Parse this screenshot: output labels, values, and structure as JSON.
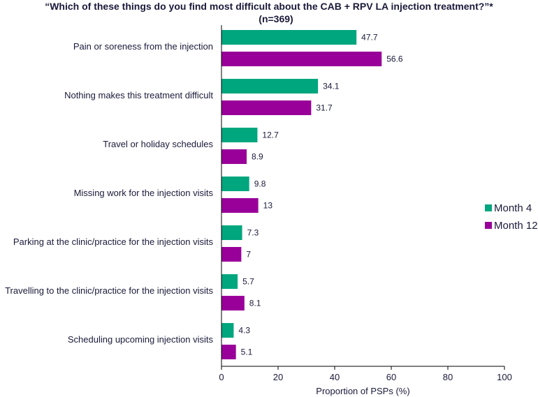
{
  "chart_data": {
    "type": "bar",
    "orientation": "horizontal",
    "title": "“Which of these things do you find most difficult about the CAB + RPV LA injection treatment?”*",
    "subtitle": "(n=369)",
    "xlabel": "Proportion of PSPs (%)",
    "ylabel": "",
    "xlim": [
      0,
      100
    ],
    "xticks": [
      "0",
      "20",
      "40",
      "60",
      "80",
      "100"
    ],
    "grid": false,
    "legend_position": "right",
    "categories": [
      "Pain or soreness from the injection",
      "Nothing makes this treatment difficult",
      "Travel or holiday schedules",
      "Missing work for the injection visits",
      "Parking at the clinic/practice for the injection visits",
      "Travelling to the clinic/practice for the injection visits",
      "Scheduling upcoming injection visits"
    ],
    "series": [
      {
        "name": "Month 4",
        "color": "#00a67e",
        "values": [
          47.7,
          34.1,
          12.7,
          9.8,
          7.3,
          5.7,
          4.3
        ]
      },
      {
        "name": "Month 12",
        "color": "#990099",
        "values": [
          56.6,
          31.7,
          8.9,
          13,
          7,
          8.1,
          5.1
        ]
      }
    ]
  }
}
